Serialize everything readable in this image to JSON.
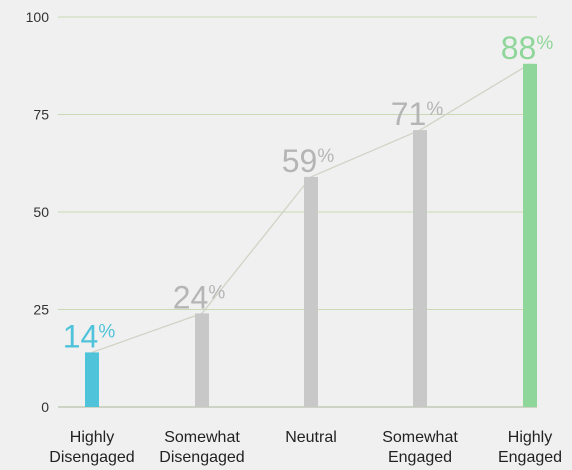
{
  "chart_data": {
    "type": "bar",
    "categories": [
      [
        "Highly",
        "Disengaged"
      ],
      [
        "Somewhat",
        "Disengaged"
      ],
      [
        "Neutral"
      ],
      [
        "Somewhat",
        "Engaged"
      ],
      [
        "Highly",
        "Engaged"
      ]
    ],
    "values": [
      14,
      24,
      59,
      71,
      88
    ],
    "value_suffix": "%",
    "ylim": [
      0,
      100
    ],
    "yticks": [
      0,
      25,
      50,
      75,
      100
    ],
    "grid": true,
    "trend_line": true,
    "colors": {
      "bars": [
        "#4fc3d9",
        "#c8c8c8",
        "#c8c8c8",
        "#c8c8c8",
        "#8fd69a"
      ],
      "value_labels": [
        "#4fc3d9",
        "#b5b5b5",
        "#b5b5b5",
        "#b5b5b5",
        "#8fd69a"
      ],
      "grid": "#c9d9b4",
      "axis": "#aab79a",
      "trend_line": "#cfd4c6"
    }
  }
}
